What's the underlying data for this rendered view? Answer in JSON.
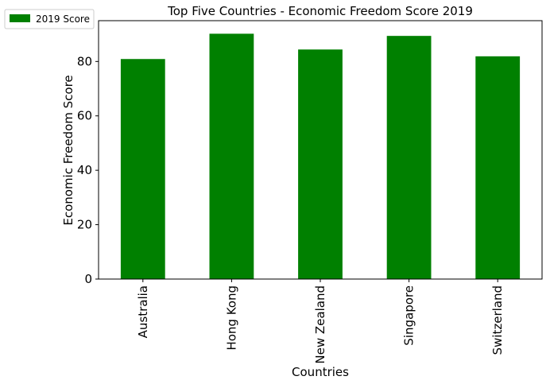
{
  "chart_data": {
    "type": "bar",
    "title": "Top Five Countries - Economic Freedom Score 2019",
    "xlabel": "Countries",
    "ylabel": "Economic Freedom Score",
    "categories": [
      "Australia",
      "Hong Kong",
      "New Zealand",
      "Singapore",
      "Switzerland"
    ],
    "series": [
      {
        "name": "2019 Score",
        "values": [
          80.9,
          90.2,
          84.4,
          89.4,
          81.9
        ],
        "color": "#008000"
      }
    ],
    "ylim": [
      0,
      95
    ],
    "yticks": [
      0,
      20,
      40,
      60,
      80
    ],
    "grid": false,
    "legend_position": "top-left, outside plot"
  }
}
